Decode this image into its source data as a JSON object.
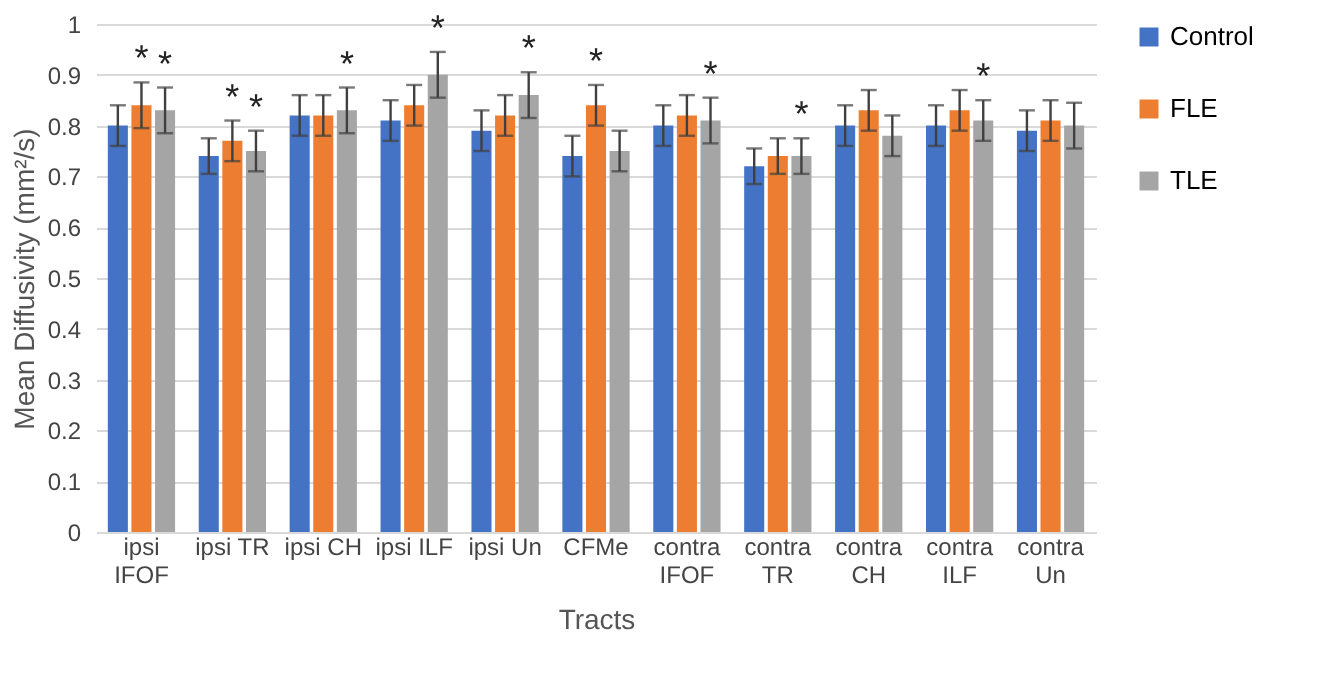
{
  "chart_data": {
    "type": "bar",
    "categories": [
      "ipsi IFOF",
      "ipsi TR",
      "ipsi CH",
      "ipsi ILF",
      "ipsi Un",
      "CFMe",
      "contra IFOF",
      "contra TR",
      "contra CH",
      "contra ILF",
      "contra Un"
    ],
    "xlabel": "Tracts",
    "ylabel": "Mean Diffusivity (mm²/s)",
    "ylim": [
      0,
      1
    ],
    "yticks": [
      0,
      0.1,
      0.2,
      0.3,
      0.4,
      0.5,
      0.6,
      0.7,
      0.8,
      0.9,
      1
    ],
    "grid": "y",
    "legend": "right",
    "series": [
      {
        "name": "Control",
        "color": "#4472c4",
        "values": [
          0.8,
          0.74,
          0.82,
          0.81,
          0.79,
          0.74,
          0.8,
          0.72,
          0.8,
          0.8,
          0.79
        ],
        "errors": [
          0.04,
          0.035,
          0.04,
          0.04,
          0.04,
          0.04,
          0.04,
          0.035,
          0.04,
          0.04,
          0.04
        ],
        "value_labels": [
          null,
          null,
          null,
          null,
          null,
          null,
          null,
          null,
          null,
          null,
          null
        ]
      },
      {
        "name": "FLE",
        "color": "#ed7d31",
        "values": [
          0.84,
          0.77,
          0.82,
          0.84,
          0.82,
          0.84,
          0.82,
          0.74,
          0.83,
          0.83,
          0.81
        ],
        "errors": [
          0.045,
          0.04,
          0.04,
          0.04,
          0.04,
          0.04,
          0.04,
          0.035,
          0.04,
          0.04,
          0.04
        ],
        "value_labels": [
          "*",
          "*",
          null,
          null,
          null,
          "*",
          null,
          null,
          null,
          null,
          null
        ]
      },
      {
        "name": "TLE",
        "color": "#a5a5a5",
        "values": [
          0.83,
          0.75,
          0.83,
          0.9,
          0.86,
          0.75,
          0.81,
          0.74,
          0.78,
          0.81,
          0.8
        ],
        "errors": [
          0.045,
          0.04,
          0.045,
          0.045,
          0.045,
          0.04,
          0.045,
          0.035,
          0.04,
          0.04,
          0.045
        ],
        "value_labels": [
          "*",
          "*",
          "*",
          "*",
          "*",
          null,
          "*",
          "*",
          null,
          "*",
          null
        ]
      }
    ]
  }
}
